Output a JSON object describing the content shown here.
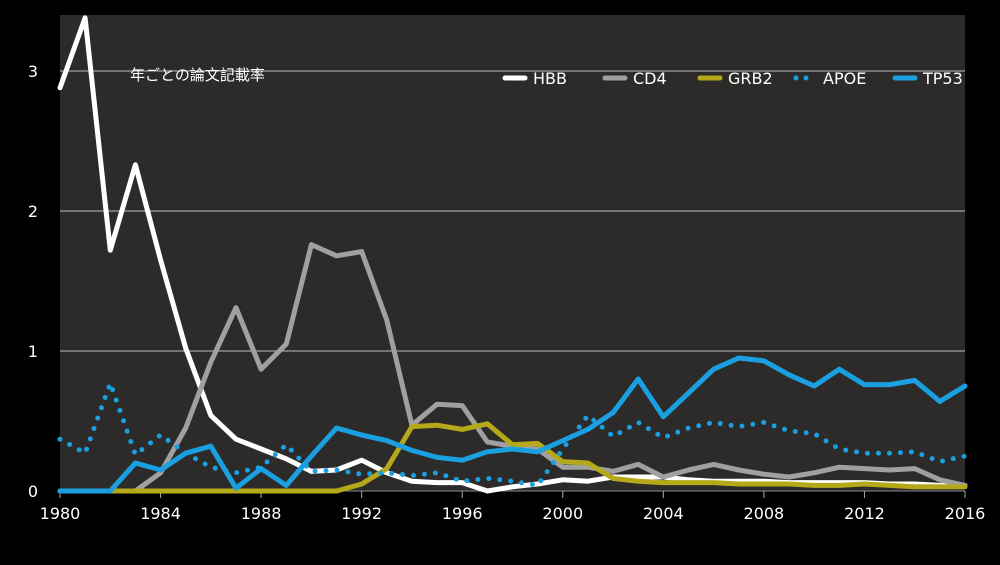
{
  "chart_data": {
    "type": "line",
    "title": "年ごとの論文記載率",
    "xlim": [
      1980,
      2016
    ],
    "ylim": [
      0,
      3.4
    ],
    "x_ticks": [
      1980,
      1984,
      1988,
      1992,
      1996,
      2000,
      2004,
      2008,
      2012,
      2016
    ],
    "y_ticks": [
      0,
      1,
      2,
      3
    ],
    "grid": true,
    "legend_position": "top-right",
    "x": [
      1980,
      1981,
      1982,
      1983,
      1984,
      1985,
      1986,
      1987,
      1988,
      1989,
      1990,
      1991,
      1992,
      1993,
      1994,
      1995,
      1996,
      1997,
      1998,
      1999,
      2000,
      2001,
      2002,
      2003,
      2004,
      2005,
      2006,
      2007,
      2008,
      2009,
      2010,
      2011,
      2012,
      2013,
      2014,
      2015,
      2016
    ],
    "series": [
      {
        "name": "HBB",
        "color": "#ffffff",
        "style": "solid",
        "values": [
          2.88,
          3.38,
          1.72,
          2.33,
          1.65,
          1.02,
          0.54,
          0.37,
          0.3,
          0.23,
          0.14,
          0.15,
          0.22,
          0.13,
          0.07,
          0.06,
          0.06,
          0.0,
          0.03,
          0.05,
          0.08,
          0.07,
          0.1,
          0.1,
          0.1,
          0.08,
          0.07,
          0.07,
          0.07,
          0.06,
          0.06,
          0.06,
          0.06,
          0.05,
          0.05,
          0.04,
          0.04
        ]
      },
      {
        "name": "CD4",
        "color": "#a0a0a0",
        "style": "solid",
        "values": [
          0,
          0,
          0,
          0,
          0.13,
          0.45,
          0.92,
          1.31,
          0.87,
          1.05,
          1.76,
          1.68,
          1.71,
          1.22,
          0.47,
          0.62,
          0.61,
          0.35,
          0.32,
          0.3,
          0.17,
          0.17,
          0.14,
          0.19,
          0.1,
          0.15,
          0.19,
          0.15,
          0.12,
          0.1,
          0.13,
          0.17,
          0.16,
          0.15,
          0.16,
          0.08,
          0.04
        ]
      },
      {
        "name": "GRB2",
        "color": "#b5a91a",
        "style": "solid",
        "values": [
          0,
          0,
          0,
          0,
          0,
          0,
          0,
          0,
          0,
          0,
          0,
          0,
          0.05,
          0.16,
          0.46,
          0.47,
          0.44,
          0.48,
          0.33,
          0.34,
          0.21,
          0.2,
          0.09,
          0.07,
          0.06,
          0.06,
          0.06,
          0.05,
          0.05,
          0.05,
          0.04,
          0.04,
          0.05,
          0.04,
          0.03,
          0.03,
          0.03
        ]
      },
      {
        "name": "APOE",
        "color": "#1aa0e0",
        "style": "dotted",
        "values": [
          0.37,
          0.27,
          0.77,
          0.26,
          0.4,
          0.27,
          0.17,
          0.13,
          0.17,
          0.33,
          0.14,
          0.15,
          0.12,
          0.13,
          0.11,
          0.13,
          0.07,
          0.09,
          0.07,
          0.04,
          0.3,
          0.54,
          0.39,
          0.49,
          0.38,
          0.45,
          0.49,
          0.46,
          0.49,
          0.43,
          0.41,
          0.3,
          0.27,
          0.27,
          0.28,
          0.21,
          0.25
        ]
      },
      {
        "name": "TP53",
        "color": "#1aa0e0",
        "style": "solid",
        "values": [
          0,
          0,
          0,
          0.2,
          0.15,
          0.27,
          0.32,
          0.02,
          0.16,
          0.04,
          0.25,
          0.45,
          0.4,
          0.36,
          0.29,
          0.24,
          0.22,
          0.28,
          0.3,
          0.28,
          0.36,
          0.44,
          0.56,
          0.8,
          0.53,
          0.7,
          0.87,
          0.95,
          0.93,
          0.83,
          0.75,
          0.87,
          0.76,
          0.76,
          0.79,
          0.64,
          0.75
        ]
      }
    ]
  }
}
